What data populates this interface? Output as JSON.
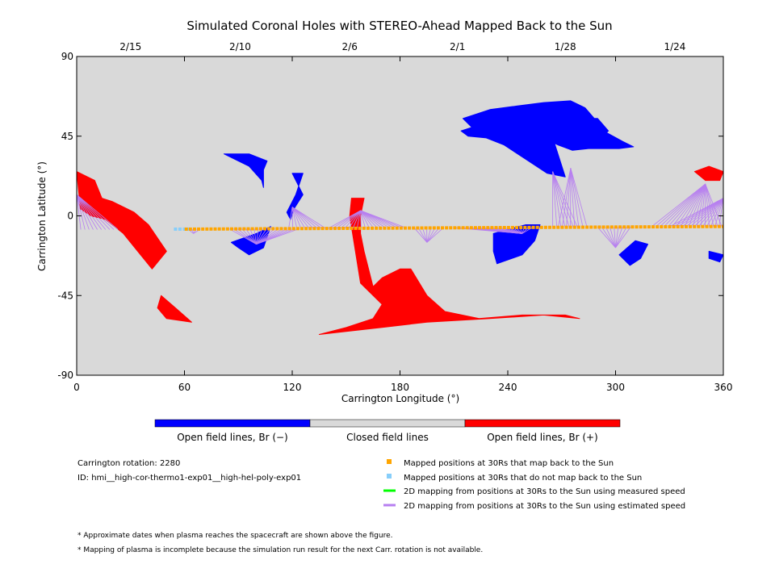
{
  "chart_data": {
    "type": "scatter",
    "title": "Simulated Coronal Holes with STEREO-Ahead Mapped Back to the Sun",
    "xlabel": "Carrington Longitude (°)",
    "ylabel": "Carrington Latitude (°)",
    "xlim": [
      0,
      360
    ],
    "ylim": [
      -90,
      90
    ],
    "x_ticks": [
      0,
      60,
      120,
      180,
      240,
      300,
      360
    ],
    "y_ticks": [
      90,
      45,
      0,
      -45,
      -90
    ],
    "top_axis": {
      "ticks": [
        {
          "label": "2/15",
          "lon": 30
        },
        {
          "label": "2/10",
          "lon": 91
        },
        {
          "label": "2/6",
          "lon": 152
        },
        {
          "label": "2/1",
          "lon": 212
        },
        {
          "label": "1/28",
          "lon": 272
        },
        {
          "label": "1/24",
          "lon": 333
        }
      ]
    },
    "background_color": "#d9d9d9",
    "colorbar": {
      "labels": [
        "Open field lines, Br (−)",
        "Closed field lines",
        "Open field lines, Br (+)"
      ],
      "colors": [
        "#0000ff",
        "#d9d9d9",
        "#ff0000"
      ]
    },
    "open_negative_regions": [
      {
        "name": "north-polar-hole",
        "outline": [
          [
            215,
            55
          ],
          [
            230,
            60
          ],
          [
            245,
            62
          ],
          [
            260,
            64
          ],
          [
            275,
            65
          ],
          [
            283,
            61
          ],
          [
            295,
            47
          ],
          [
            304,
            42
          ],
          [
            310,
            39
          ],
          [
            302,
            38
          ],
          [
            285,
            38
          ],
          [
            276,
            37
          ],
          [
            268,
            40
          ],
          [
            260,
            44
          ],
          [
            256,
            48
          ],
          [
            262,
            53
          ],
          [
            275,
            55
          ],
          [
            290,
            55
          ],
          [
            296,
            48
          ],
          [
            292,
            44
          ],
          [
            280,
            41
          ],
          [
            268,
            43
          ],
          [
            262,
            45
          ],
          [
            266,
            41
          ],
          [
            272,
            22
          ],
          [
            262,
            24
          ],
          [
            250,
            32
          ],
          [
            238,
            40
          ],
          [
            228,
            44
          ],
          [
            218,
            45
          ],
          [
            214,
            48
          ],
          [
            220,
            50
          ]
        ]
      },
      {
        "name": "north-mid-hole",
        "outline": [
          [
            82,
            35
          ],
          [
            96,
            35
          ],
          [
            106,
            31
          ],
          [
            104,
            26
          ],
          [
            104,
            16
          ],
          [
            103,
            20
          ],
          [
            96,
            28
          ],
          [
            88,
            32
          ]
        ]
      },
      {
        "name": "equatorial-hole-a",
        "outline": [
          [
            120,
            24
          ],
          [
            126,
            24
          ],
          [
            122,
            12
          ],
          [
            117,
            2
          ],
          [
            119,
            -2
          ],
          [
            121,
            4
          ],
          [
            126,
            12
          ]
        ]
      },
      {
        "name": "equatorial-hole-b",
        "outline": [
          [
            86,
            -15
          ],
          [
            100,
            -10
          ],
          [
            108,
            -6
          ],
          [
            104,
            -18
          ],
          [
            96,
            -22
          ],
          [
            90,
            -18
          ]
        ]
      },
      {
        "name": "equatorial-hole-c",
        "outline": [
          [
            232,
            -10
          ],
          [
            250,
            -5
          ],
          [
            258,
            -5
          ],
          [
            255,
            -14
          ],
          [
            248,
            -22
          ],
          [
            234,
            -27
          ],
          [
            232,
            -20
          ]
        ]
      },
      {
        "name": "equatorial-hole-d",
        "outline": [
          [
            302,
            -22
          ],
          [
            308,
            -28
          ],
          [
            314,
            -24
          ],
          [
            318,
            -16
          ],
          [
            311,
            -14
          ]
        ]
      },
      {
        "name": "small-hole-e",
        "outline": [
          [
            352,
            -20
          ],
          [
            360,
            -22
          ],
          [
            358,
            -26
          ],
          [
            352,
            -24
          ]
        ]
      }
    ],
    "open_positive_regions": [
      {
        "name": "south-central-hole",
        "outline": [
          [
            135,
            -67
          ],
          [
            170,
            -63
          ],
          [
            195,
            -60
          ],
          [
            230,
            -58
          ],
          [
            260,
            -56
          ],
          [
            280,
            -58
          ],
          [
            272,
            -56
          ],
          [
            248,
            -56
          ],
          [
            224,
            -58
          ],
          [
            205,
            -54
          ],
          [
            195,
            -45
          ],
          [
            186,
            -30
          ],
          [
            180,
            -30
          ],
          [
            170,
            -35
          ],
          [
            165,
            -40
          ],
          [
            160,
            -20
          ],
          [
            158,
            -10
          ],
          [
            158,
            0
          ],
          [
            160,
            10
          ],
          [
            153,
            10
          ],
          [
            152,
            0
          ],
          [
            158,
            -38
          ],
          [
            170,
            -50
          ],
          [
            165,
            -58
          ],
          [
            150,
            -63
          ]
        ]
      },
      {
        "name": "west-limb-hole",
        "outline": [
          [
            0,
            25
          ],
          [
            10,
            20
          ],
          [
            14,
            10
          ],
          [
            20,
            8
          ],
          [
            32,
            2
          ],
          [
            40,
            -5
          ],
          [
            50,
            -20
          ],
          [
            42,
            -30
          ],
          [
            34,
            -20
          ],
          [
            26,
            -10
          ],
          [
            16,
            -2
          ],
          [
            8,
            0
          ],
          [
            2,
            4
          ]
        ]
      },
      {
        "name": "south-west-hole",
        "outline": [
          [
            47,
            -45
          ],
          [
            55,
            -52
          ],
          [
            64,
            -60
          ],
          [
            50,
            -58
          ],
          [
            45,
            -52
          ]
        ]
      },
      {
        "name": "east-limb-hole",
        "outline": [
          [
            344,
            25
          ],
          [
            352,
            28
          ],
          [
            360,
            25
          ],
          [
            358,
            20
          ],
          [
            350,
            20
          ]
        ]
      }
    ],
    "mapped_positions_map_back": {
      "label": "Mapped positions at 30Rs that map back to the Sun",
      "color": "#ffa500",
      "lon_start": 61,
      "lon_end": 360,
      "step": 2.3,
      "lat_start": -7.5,
      "lat_end": -6
    },
    "mapped_positions_no_map_back": {
      "label": "Mapped positions at 30Rs that do not map back to the Sun",
      "color": "#87cefa",
      "lons": [
        55,
        57.5,
        60,
        62.5
      ],
      "lat": -7.5
    },
    "measured_speed_mapping": {
      "label": "2D mapping from positions at 30Rs to the Sun using measured speed",
      "color": "#00ff00",
      "lines": []
    },
    "estimated_speed_mapping": {
      "label": "2D mapping from positions at 30Rs to the Sun using estimated speed",
      "color": "#b77ff0",
      "fans": [
        {
          "target": [
            0,
            12
          ],
          "from_lon": [
            0,
            25
          ]
        },
        {
          "target": [
            65,
            -10
          ],
          "from_lon": [
            62,
            70
          ]
        },
        {
          "target": [
            100,
            -16
          ],
          "from_lon": [
            85,
            125
          ]
        },
        {
          "target": [
            120,
            5
          ],
          "from_lon": [
            118,
            140
          ]
        },
        {
          "target": [
            158,
            3
          ],
          "from_lon": [
            140,
            185
          ]
        },
        {
          "target": [
            195,
            -15
          ],
          "from_lon": [
            188,
            205
          ]
        },
        {
          "target": [
            248,
            -10
          ],
          "from_lon": [
            210,
            255
          ]
        },
        {
          "target": [
            265,
            25
          ],
          "from_lon": [
            265,
            280
          ]
        },
        {
          "target": [
            275,
            27
          ],
          "from_lon": [
            268,
            285
          ]
        },
        {
          "target": [
            300,
            -18
          ],
          "from_lon": [
            290,
            310
          ]
        },
        {
          "target": [
            350,
            18
          ],
          "from_lon": [
            320,
            360
          ]
        },
        {
          "target": [
            360,
            10
          ],
          "from_lon": [
            330,
            360
          ]
        }
      ]
    }
  },
  "info": {
    "rotation": "Carrington rotation: 2280",
    "id": "ID: hmi__high-cor-thermo1-exp01__high-hel-poly-exp01"
  },
  "footnotes": [
    "* Approximate dates when plasma reaches the spacecraft are shown above the figure.",
    "* Mapping of plasma is incomplete because the simulation run result for the next Carr. rotation is not available."
  ]
}
